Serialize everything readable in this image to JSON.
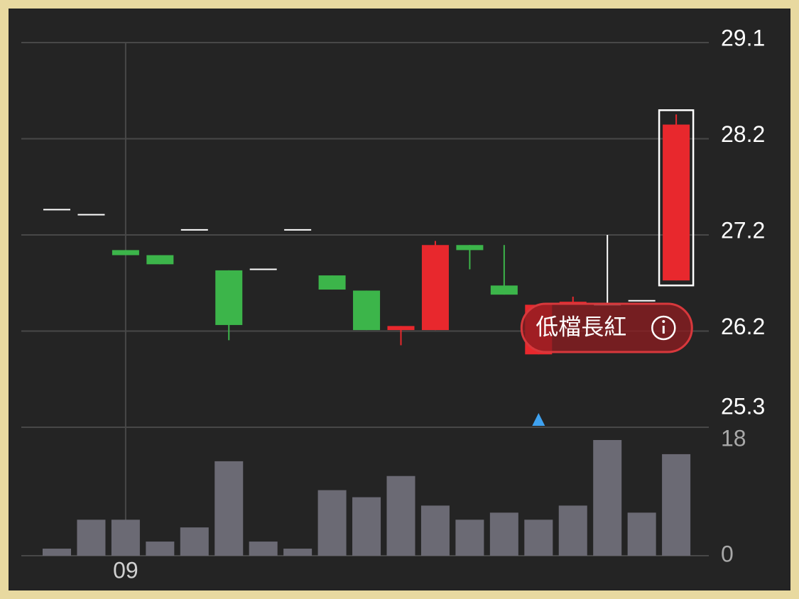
{
  "chart_data": {
    "type": "candlestick",
    "categories": [
      null,
      null,
      "09",
      null,
      null,
      null,
      null,
      null,
      null,
      null,
      null,
      null,
      null,
      null,
      null,
      null,
      null,
      null,
      null
    ],
    "open": [
      27.45,
      27.4,
      27.05,
      27.0,
      27.25,
      26.85,
      26.86,
      27.25,
      26.8,
      26.65,
      26.26,
      26.26,
      27.1,
      26.7,
      26.02,
      26.51,
      26.51,
      26.55,
      26.75
    ],
    "high": [
      27.45,
      27.4,
      27.05,
      27.0,
      27.25,
      26.85,
      26.86,
      27.25,
      26.8,
      26.65,
      26.3,
      27.14,
      27.1,
      27.1,
      26.51,
      26.59,
      27.2,
      26.55,
      28.39
    ],
    "low": [
      27.45,
      27.4,
      27.0,
      26.91,
      27.25,
      26.16,
      26.86,
      27.25,
      26.66,
      26.26,
      26.11,
      26.26,
      26.86,
      26.61,
      26.02,
      26.51,
      26.51,
      26.55,
      26.75
    ],
    "close": [
      27.45,
      27.4,
      27.0,
      26.91,
      27.25,
      26.31,
      26.86,
      27.25,
      26.66,
      26.26,
      26.3,
      27.1,
      27.05,
      26.61,
      26.51,
      26.54,
      26.51,
      26.55,
      28.29
    ],
    "up_color": "#e8282d",
    "down_color": "#3cb54a",
    "flat_color": "#ffffff",
    "ylim": [
      25.3,
      29.1
    ],
    "yticks": [
      {
        "value": 25.3,
        "label": "25.3"
      },
      {
        "value": 26.25,
        "label": "26.2"
      },
      {
        "value": 27.2,
        "label": "27.2"
      },
      {
        "value": 28.15,
        "label": "28.2"
      },
      {
        "value": 29.1,
        "label": "29.1"
      }
    ],
    "grid": true,
    "highlighted": 18,
    "annotation": {
      "text": "低檔長紅",
      "index": 14
    },
    "volume": {
      "values": [
        1.1,
        5.6,
        5.6,
        2.2,
        4.4,
        14.7,
        2.2,
        1.1,
        10.2,
        9.1,
        12.4,
        7.8,
        5.6,
        6.7,
        5.6,
        7.8,
        18,
        6.7,
        15.8
      ],
      "color": "#6b6a74",
      "ylim": [
        0,
        18
      ],
      "yticks": [
        0,
        18
      ]
    }
  }
}
